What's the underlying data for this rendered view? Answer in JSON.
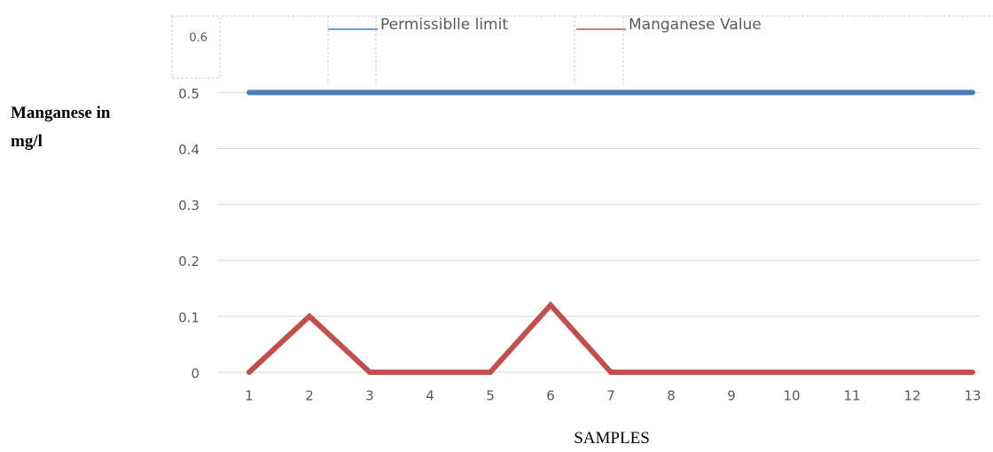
{
  "chart_data": {
    "type": "line",
    "y_label": "Manganese in mg/l",
    "x_label": "SAMPLES",
    "categories": [
      "1",
      "2",
      "3",
      "4",
      "5",
      "6",
      "7",
      "8",
      "9",
      "10",
      "11",
      "12",
      "13"
    ],
    "series": [
      {
        "name": "Permissiblle limit",
        "color": "#4a7ebf",
        "values": [
          0.5,
          0.5,
          0.5,
          0.5,
          0.5,
          0.5,
          0.5,
          0.5,
          0.5,
          0.5,
          0.5,
          0.5,
          0.5
        ]
      },
      {
        "name": "Manganese Value",
        "color": "#c0504d",
        "values": [
          0,
          0.1,
          0,
          0,
          0,
          0.12,
          0,
          0,
          0,
          0,
          0,
          0,
          0
        ]
      }
    ],
    "ylim": [
      0,
      0.6
    ],
    "yticks": [
      0,
      0.1,
      0.2,
      0.3,
      0.4,
      0.5,
      0.6
    ],
    "grid": true
  }
}
